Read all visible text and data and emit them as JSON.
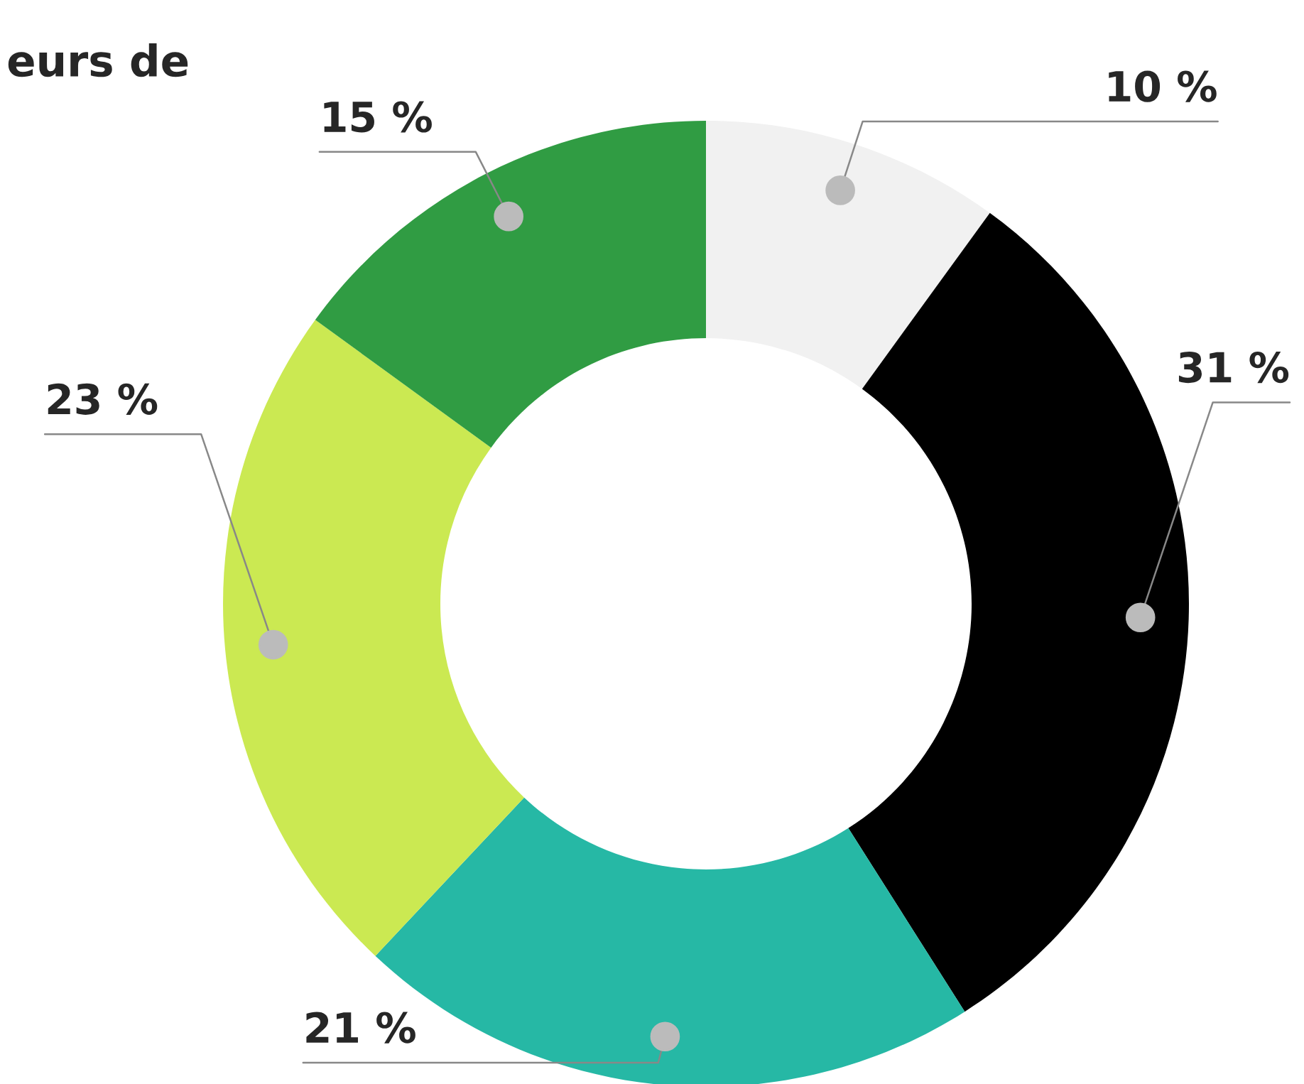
{
  "chart_data": {
    "type": "donut",
    "title": "eurs de",
    "categories": [
      null,
      null,
      null,
      null,
      null
    ],
    "values": [
      10,
      31,
      21,
      23,
      15
    ],
    "colors": [
      "#f1f1f1",
      "#000000",
      "#26b8a5",
      "#cbe952",
      "#309c43"
    ],
    "value_labels": [
      "10 %",
      "31 %",
      "21 %",
      "23 %",
      "15 %"
    ]
  }
}
